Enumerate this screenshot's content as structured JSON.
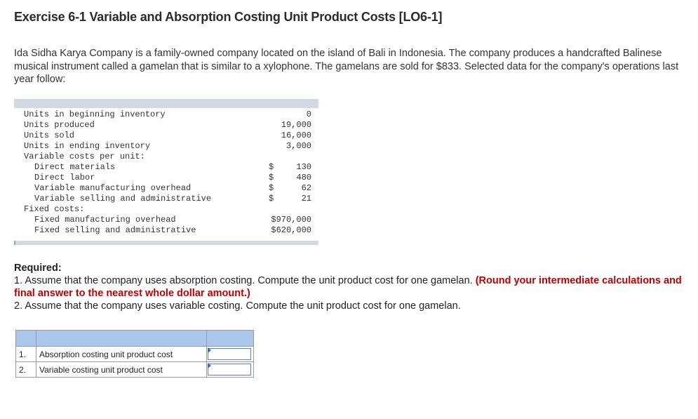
{
  "title": "Exercise 6-1 Variable and Absorption Costing Unit Product Costs [LO6-1]",
  "intro": "Ida Sidha Karya Company is a family-owned company located on the island of Bali in Indonesia. The company produces a handcrafted Balinese musical instrument called a gamelan that is similar to a xylophone. The gamelans are sold for $833. Selected data for the company's operations last year follow:",
  "data_table": {
    "rows": [
      {
        "label": "Units in beginning inventory",
        "cur": "",
        "value": "0"
      },
      {
        "label": "Units produced",
        "cur": "",
        "value": "19,000"
      },
      {
        "label": "Units sold",
        "cur": "",
        "value": "16,000"
      },
      {
        "label": "Units in ending inventory",
        "cur": "",
        "value": "3,000"
      },
      {
        "label": "Variable costs per unit:",
        "cur": "",
        "value": ""
      },
      {
        "label": "Direct materials",
        "cur": "$",
        "value": "130"
      },
      {
        "label": "Direct labor",
        "cur": "$",
        "value": "480"
      },
      {
        "label": "Variable manufacturing overhead",
        "cur": "$",
        "value": "62"
      },
      {
        "label": "Variable selling and administrative",
        "cur": "$",
        "value": "21"
      },
      {
        "label": "Fixed costs:",
        "cur": "",
        "value": ""
      },
      {
        "label": "Fixed manufacturing overhead",
        "cur": "",
        "value": "$970,000"
      },
      {
        "label": "Fixed selling and administrative",
        "cur": "",
        "value": "$620,000"
      }
    ]
  },
  "required": {
    "heading": "Required:",
    "q1_text": "1. Assume that the company uses absorption costing. Compute the unit product cost for one gamelan.",
    "q1_note": "(Round your intermediate calculations and final answer to the nearest whole dollar amount.)",
    "q2_text": "2. Assume that the company uses variable costing. Compute the unit product cost for one gamelan."
  },
  "answer_table": {
    "rows": [
      {
        "num": "1.",
        "label": "Absorption costing unit product cost",
        "value": ""
      },
      {
        "num": "2.",
        "label": "Variable costing unit product cost",
        "value": ""
      }
    ]
  },
  "colors": {
    "header_row": "#a8c7ea",
    "data_bar": "#d3d9e4",
    "note_red": "#c00000"
  }
}
